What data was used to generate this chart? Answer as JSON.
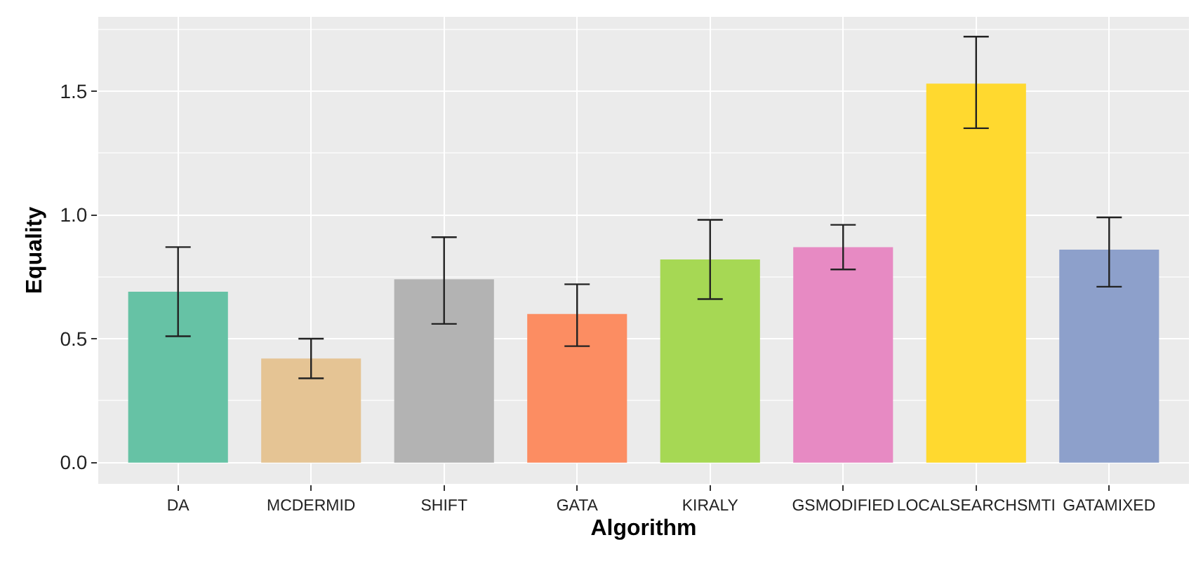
{
  "chart_data": {
    "type": "bar",
    "xlabel": "Algorithm",
    "ylabel": "Equality",
    "categories": [
      "DA",
      "MCDERMID",
      "SHIFT",
      "GATA",
      "KIRALY",
      "GSMODIFIED",
      "LOCALSEARCHSMTI",
      "GATAMIXED"
    ],
    "values": [
      0.69,
      0.42,
      0.74,
      0.6,
      0.82,
      0.87,
      1.53,
      0.86
    ],
    "errors": [
      [
        0.51,
        0.87
      ],
      [
        0.34,
        0.5
      ],
      [
        0.56,
        0.91
      ],
      [
        0.47,
        0.72
      ],
      [
        0.66,
        0.98
      ],
      [
        0.78,
        0.96
      ],
      [
        1.35,
        1.72
      ],
      [
        0.71,
        0.99
      ]
    ],
    "colors": [
      "#66c2a5",
      "#e5c494",
      "#b3b3b3",
      "#fc8d62",
      "#a6d854",
      "#e78ac3",
      "#ffd92f",
      "#8da0cb"
    ],
    "ylim": [
      -0.086,
      1.8
    ],
    "yticks": [
      {
        "value": 0,
        "label": "0.0"
      },
      0.5,
      {
        "value": 1,
        "label": "1.0"
      },
      1.5
    ],
    "grid": true
  }
}
